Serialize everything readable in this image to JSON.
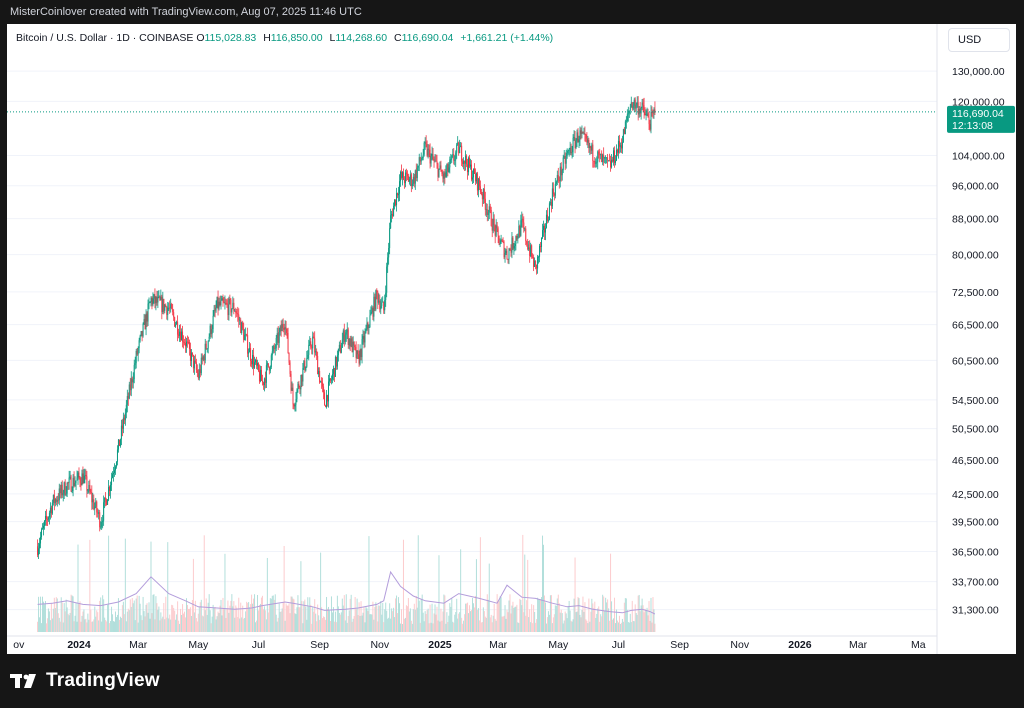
{
  "attribution": "MisterCoinlover created with TradingView.com, Aug 07, 2025 11:46 UTC",
  "legend": {
    "symbol": "Bitcoin / U.S. Dollar · 1D · COINBASE",
    "o_label": "O",
    "o": "115,028.83",
    "h_label": "H",
    "h": "116,850.00",
    "l_label": "L",
    "l": "114,268.60",
    "c_label": "C",
    "c": "116,690.04",
    "change": "+1,661.21 (+1.44%)"
  },
  "currency_button": "USD",
  "last_price": {
    "price": "116,690.04",
    "countdown": "12:13:08"
  },
  "brand": {
    "name": "TradingView"
  },
  "colors": {
    "up": "#089981",
    "down": "#f23645",
    "volume_up": "#b2dfdb",
    "volume_down": "#fccbcd",
    "vol_ma": "#b39ddb",
    "price_line": "#089981"
  },
  "chart_data": {
    "type": "candlestick",
    "title": "Bitcoin / U.S. Dollar · 1D · COINBASE",
    "y_scale": "log",
    "y_ticks": [
      "130,000.00",
      "120,000.00",
      "104,000.00",
      "96,000.00",
      "88,000.00",
      "80,000.00",
      "72,500.00",
      "66,500.00",
      "60,500.00",
      "54,500.00",
      "50,500.00",
      "46,500.00",
      "42,500.00",
      "39,500.00",
      "36,500.00",
      "33,700.00",
      "31,300.00"
    ],
    "x_ticks": [
      "ov",
      "2024",
      "Mar",
      "May",
      "Jul",
      "Sep",
      "Nov",
      "2025",
      "Mar",
      "May",
      "Jul",
      "Sep",
      "Nov",
      "2026",
      "Mar",
      "Ma"
    ],
    "x_dates": [
      "2023-11-01",
      "2024-01-01",
      "2024-03-01",
      "2024-05-01",
      "2024-07-01",
      "2024-09-01",
      "2024-11-01",
      "2025-01-01",
      "2025-03-01",
      "2025-05-01",
      "2025-07-01",
      "2025-09-01",
      "2025-11-01",
      "2026-01-01",
      "2026-03-01",
      "2026-05-01"
    ],
    "series": [
      {
        "name": "BTCUSD",
        "date": [
          "2023-11-20",
          "2023-12-05",
          "2023-12-20",
          "2024-01-05",
          "2024-01-23",
          "2024-02-10",
          "2024-02-28",
          "2024-03-14",
          "2024-04-01",
          "2024-04-18",
          "2024-05-01",
          "2024-05-20",
          "2024-06-07",
          "2024-06-24",
          "2024-07-05",
          "2024-07-28",
          "2024-08-05",
          "2024-08-25",
          "2024-09-06",
          "2024-09-27",
          "2024-10-10",
          "2024-10-29",
          "2024-11-05",
          "2024-11-12",
          "2024-11-22",
          "2024-12-05",
          "2024-12-17",
          "2025-01-05",
          "2025-01-20",
          "2025-02-10",
          "2025-02-28",
          "2025-03-10",
          "2025-03-25",
          "2025-04-08",
          "2025-04-25",
          "2025-05-10",
          "2025-05-22",
          "2025-06-05",
          "2025-06-22",
          "2025-07-05",
          "2025-07-14",
          "2025-07-25",
          "2025-08-02",
          "2025-08-07"
        ],
        "close": [
          37000,
          41500,
          43500,
          44500,
          39500,
          48000,
          61000,
          71000,
          69500,
          63500,
          58000,
          70000,
          69500,
          61000,
          57000,
          67500,
          54000,
          64000,
          54000,
          65500,
          60500,
          72000,
          69000,
          88000,
          98000,
          97500,
          106000,
          98000,
          106000,
          96000,
          84000,
          80000,
          86500,
          77000,
          94000,
          104000,
          110000,
          104500,
          101000,
          108500,
          119800,
          117500,
          113500,
          116690
        ]
      }
    ],
    "price_min": 29500,
    "price_max": 136000,
    "volume_ma": [
      2300,
      2400,
      2600,
      2300,
      2200,
      2500,
      3200,
      4600,
      3200,
      2600,
      2100,
      2000,
      1900,
      2000,
      2200,
      2500,
      2400,
      2100,
      1800,
      1900,
      2000,
      2300,
      2600,
      5000,
      3800,
      3000,
      2600,
      2400,
      3200,
      2800,
      2400,
      3900,
      2900,
      2800,
      2400,
      2100,
      2200,
      1900,
      1700,
      1600,
      1800,
      1900,
      1700,
      1500
    ]
  }
}
